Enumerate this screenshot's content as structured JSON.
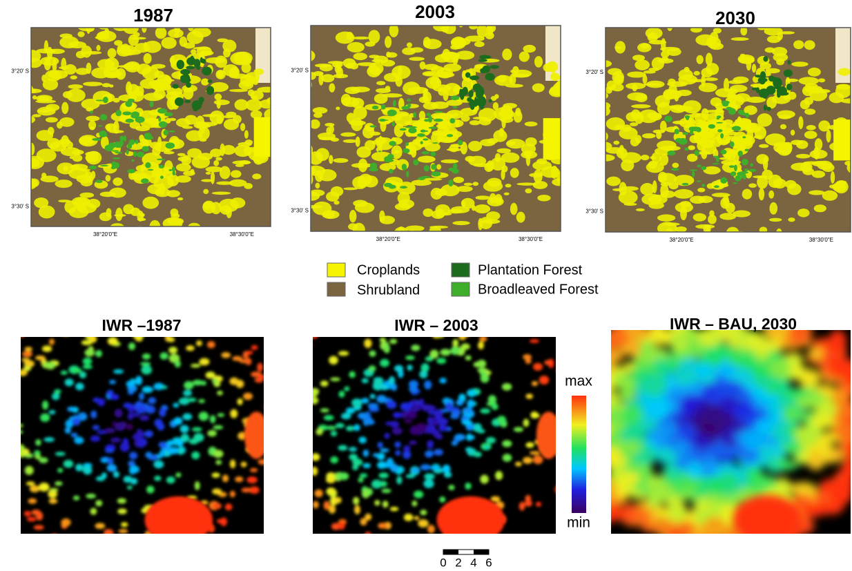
{
  "top_maps": [
    {
      "title": "1987",
      "lat_labels": [
        "3°20' S",
        "3°30' S"
      ],
      "lon_labels": [
        "38°20'0\"E",
        "38°30'0\"E"
      ]
    },
    {
      "title": "2003",
      "lat_labels": [
        "3°20' S",
        "3°30' S"
      ],
      "lon_labels": [
        "38°20'0\"E",
        "38°30'0\"E"
      ]
    },
    {
      "title": "2030",
      "lat_labels": [
        "3°20' S",
        "3°30' S"
      ],
      "lon_labels": [
        "38°20'0\"E",
        "38°30'0\"E"
      ]
    }
  ],
  "legend": {
    "items": [
      "Croplands",
      "Shrubland",
      "Plantation Forest",
      "Broadleaved Forest"
    ]
  },
  "bottom_maps": [
    {
      "title": "IWR –1987"
    },
    {
      "title": "IWR – 2003"
    },
    {
      "title": "IWR – BAU, 2030"
    }
  ],
  "colorbar": {
    "max_label": "max",
    "min_label": "min"
  },
  "scale_bar": {
    "labels": [
      "0",
      "2",
      "4",
      "6"
    ]
  }
}
